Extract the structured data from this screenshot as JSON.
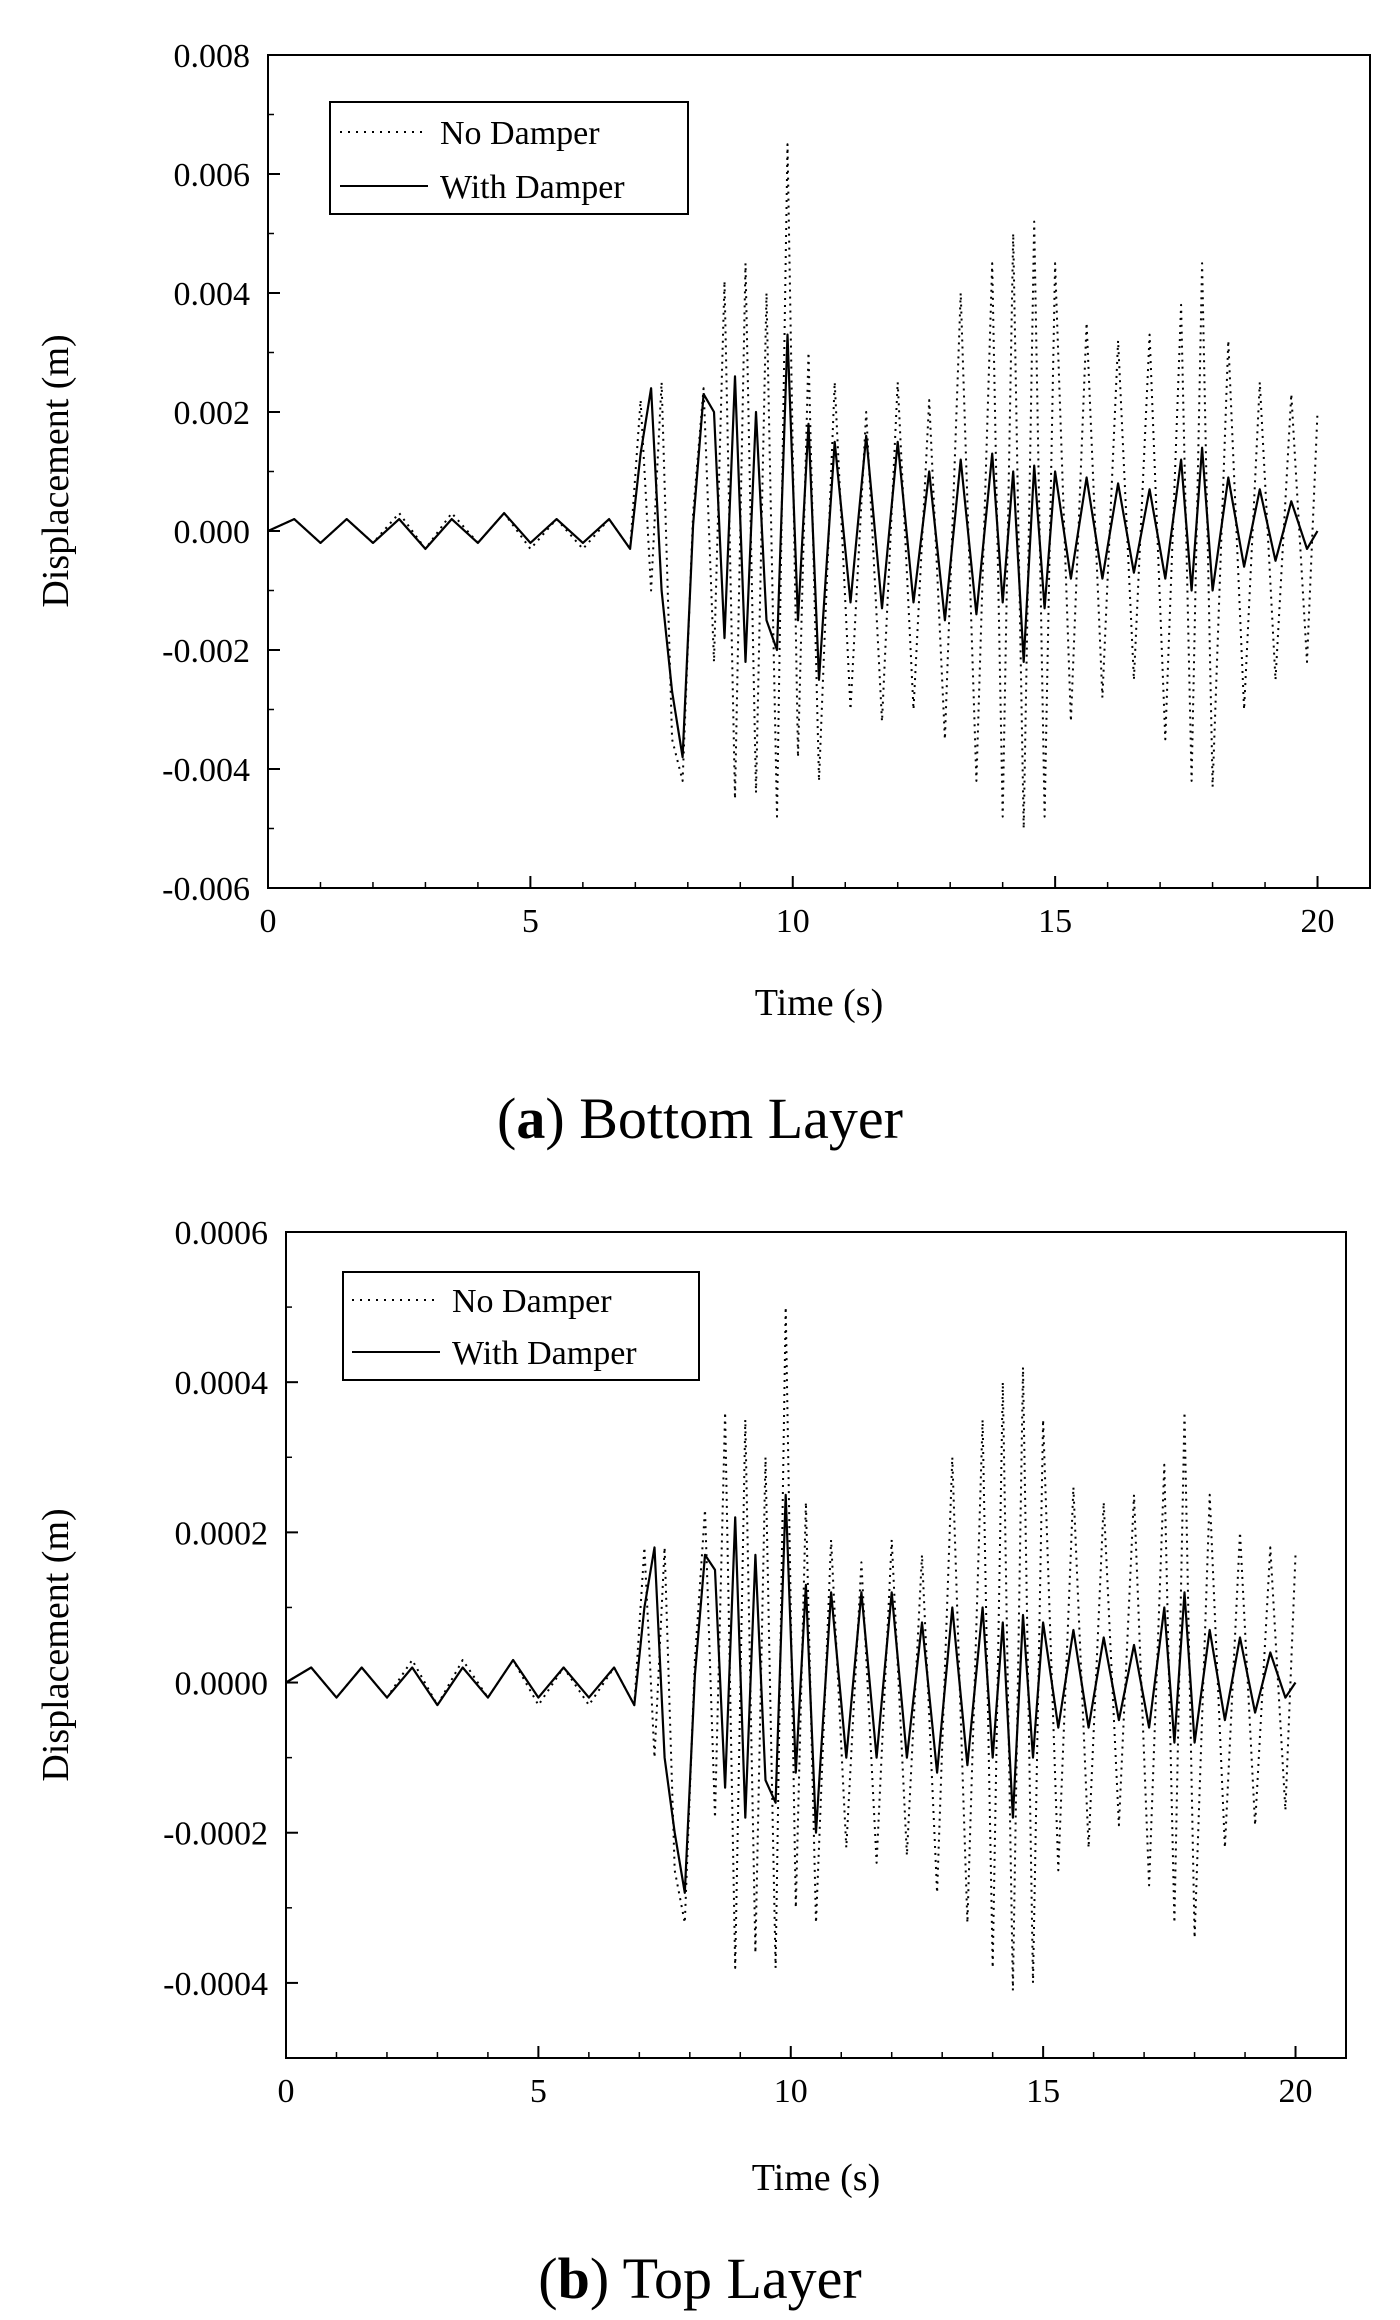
{
  "chart_data": [
    {
      "type": "line",
      "caption_letter": "a",
      "caption_text": "Bottom Layer",
      "xlabel": "Time (s)",
      "ylabel": "Displacement (m)",
      "xlim": [
        0,
        21
      ],
      "ylim": [
        -0.006,
        0.008
      ],
      "xticks": [
        0,
        5,
        10,
        15,
        20
      ],
      "xtick_labels": [
        "0",
        "5",
        "10",
        "15",
        "20"
      ],
      "yticks": [
        -0.006,
        -0.004,
        -0.002,
        0.0,
        0.002,
        0.004,
        0.006,
        0.008
      ],
      "ytick_labels": [
        "-0.006",
        "-0.004",
        "-0.002",
        "0.000",
        "0.002",
        "0.004",
        "0.006",
        "0.008"
      ],
      "legend_position": "top-left",
      "legend": [
        "No Damper",
        "With Damper"
      ],
      "series": [
        {
          "name": "No Damper",
          "style": "dotted",
          "x": [
            0,
            0.5,
            1,
            1.5,
            2,
            2.5,
            3,
            3.5,
            4,
            4.5,
            5,
            5.5,
            6,
            6.5,
            6.9,
            7.1,
            7.3,
            7.5,
            7.7,
            7.9,
            8.1,
            8.3,
            8.5,
            8.7,
            8.9,
            9.1,
            9.3,
            9.5,
            9.7,
            9.9,
            10.1,
            10.3,
            10.5,
            10.8,
            11.1,
            11.4,
            11.7,
            12.0,
            12.3,
            12.6,
            12.9,
            13.2,
            13.5,
            13.8,
            14.0,
            14.2,
            14.4,
            14.6,
            14.8,
            15.0,
            15.3,
            15.6,
            15.9,
            16.2,
            16.5,
            16.8,
            17.1,
            17.4,
            17.6,
            17.8,
            18.0,
            18.3,
            18.6,
            18.9,
            19.2,
            19.5,
            19.8,
            20.0
          ],
          "y": [
            0.0,
            0.0002,
            -0.0002,
            0.0002,
            -0.0002,
            0.0003,
            -0.0003,
            0.0003,
            -0.0002,
            0.0003,
            -0.0003,
            0.0002,
            -0.0003,
            0.0002,
            -0.0003,
            0.0022,
            -0.001,
            0.0025,
            -0.0035,
            -0.0042,
            0.0003,
            0.0024,
            -0.0022,
            0.0042,
            -0.0045,
            0.0045,
            -0.0044,
            0.004,
            -0.0048,
            0.0065,
            -0.0038,
            0.003,
            -0.0042,
            0.0025,
            -0.003,
            0.002,
            -0.0032,
            0.0025,
            -0.003,
            0.0022,
            -0.0035,
            0.004,
            -0.0042,
            0.0045,
            -0.0048,
            0.005,
            -0.005,
            0.0052,
            -0.0048,
            0.0045,
            -0.0032,
            0.0035,
            -0.0028,
            0.0032,
            -0.0025,
            0.0033,
            -0.0035,
            0.0038,
            -0.0042,
            0.0045,
            -0.0043,
            0.0032,
            -0.003,
            0.0025,
            -0.0025,
            0.0023,
            -0.0022,
            0.002
          ]
        },
        {
          "name": "With Damper",
          "style": "solid",
          "x": [
            0,
            0.5,
            1,
            1.5,
            2,
            2.5,
            3,
            3.5,
            4,
            4.5,
            5,
            5.5,
            6,
            6.5,
            6.9,
            7.1,
            7.3,
            7.5,
            7.7,
            7.9,
            8.1,
            8.3,
            8.5,
            8.7,
            8.9,
            9.1,
            9.3,
            9.5,
            9.7,
            9.9,
            10.1,
            10.3,
            10.5,
            10.8,
            11.1,
            11.4,
            11.7,
            12.0,
            12.3,
            12.6,
            12.9,
            13.2,
            13.5,
            13.8,
            14.0,
            14.2,
            14.4,
            14.6,
            14.8,
            15.0,
            15.3,
            15.6,
            15.9,
            16.2,
            16.5,
            16.8,
            17.1,
            17.4,
            17.6,
            17.8,
            18.0,
            18.3,
            18.6,
            18.9,
            19.2,
            19.5,
            19.8,
            20.0
          ],
          "y": [
            0.0,
            0.0002,
            -0.0002,
            0.0002,
            -0.0002,
            0.0002,
            -0.0003,
            0.0002,
            -0.0002,
            0.0003,
            -0.0002,
            0.0002,
            -0.0002,
            0.0002,
            -0.0003,
            0.0013,
            0.0024,
            -0.001,
            -0.0027,
            -0.0038,
            0.0001,
            0.0023,
            0.002,
            -0.0018,
            0.0026,
            -0.0022,
            0.002,
            -0.0015,
            -0.002,
            0.0033,
            -0.0015,
            0.0018,
            -0.0025,
            0.0015,
            -0.0012,
            0.0016,
            -0.0013,
            0.0015,
            -0.0012,
            0.001,
            -0.0015,
            0.0012,
            -0.0014,
            0.0013,
            -0.0012,
            0.001,
            -0.0022,
            0.0011,
            -0.0013,
            0.001,
            -0.0008,
            0.0009,
            -0.0008,
            0.0008,
            -0.0007,
            0.0007,
            -0.0008,
            0.0012,
            -0.001,
            0.0014,
            -0.001,
            0.0009,
            -0.0006,
            0.0007,
            -0.0005,
            0.0005,
            -0.0003,
            0.0
          ]
        }
      ]
    },
    {
      "type": "line",
      "caption_letter": "b",
      "caption_text": "Top Layer",
      "xlabel": "Time (s)",
      "ylabel": "Displacement (m)",
      "xlim": [
        0,
        21
      ],
      "ylim": [
        -0.0005,
        0.0006
      ],
      "xticks": [
        0,
        5,
        10,
        15,
        20
      ],
      "xtick_labels": [
        "0",
        "5",
        "10",
        "15",
        "20"
      ],
      "yticks": [
        -0.0004,
        -0.0002,
        0.0,
        0.0002,
        0.0004,
        0.0006
      ],
      "ytick_labels": [
        "-0.0004",
        "-0.0002",
        "0.0000",
        "0.0002",
        "0.0004",
        "0.0006"
      ],
      "legend_position": "top-left",
      "legend": [
        "No Damper",
        "With Damper"
      ],
      "series": [
        {
          "name": "No Damper",
          "style": "dotted",
          "x": [
            0,
            0.5,
            1,
            1.5,
            2,
            2.5,
            3,
            3.5,
            4,
            4.5,
            5,
            5.5,
            6,
            6.5,
            6.9,
            7.1,
            7.3,
            7.5,
            7.7,
            7.9,
            8.1,
            8.3,
            8.5,
            8.7,
            8.9,
            9.1,
            9.3,
            9.5,
            9.7,
            9.9,
            10.1,
            10.3,
            10.5,
            10.8,
            11.1,
            11.4,
            11.7,
            12.0,
            12.3,
            12.6,
            12.9,
            13.2,
            13.5,
            13.8,
            14.0,
            14.2,
            14.4,
            14.6,
            14.8,
            15.0,
            15.3,
            15.6,
            15.9,
            16.2,
            16.5,
            16.8,
            17.1,
            17.4,
            17.6,
            17.8,
            18.0,
            18.3,
            18.6,
            18.9,
            19.2,
            19.5,
            19.8,
            20.0
          ],
          "y": [
            0.0,
            2e-05,
            -2e-05,
            2e-05,
            -2e-05,
            3e-05,
            -3e-05,
            3e-05,
            -2e-05,
            3e-05,
            -3e-05,
            2e-05,
            -3e-05,
            2e-05,
            -3e-05,
            0.00018,
            -0.0001,
            0.00018,
            -0.00025,
            -0.00032,
            3e-05,
            0.00023,
            -0.00018,
            0.00036,
            -0.00038,
            0.00035,
            -0.00036,
            0.0003,
            -0.00038,
            0.0005,
            -0.0003,
            0.00024,
            -0.00032,
            0.00019,
            -0.00022,
            0.00016,
            -0.00024,
            0.00019,
            -0.00023,
            0.00017,
            -0.00028,
            0.0003,
            -0.00032,
            0.00035,
            -0.00038,
            0.0004,
            -0.00041,
            0.00042,
            -0.0004,
            0.00035,
            -0.00025,
            0.00026,
            -0.00022,
            0.00024,
            -0.00019,
            0.00025,
            -0.00027,
            0.00029,
            -0.00032,
            0.00036,
            -0.00034,
            0.00025,
            -0.00022,
            0.0002,
            -0.00019,
            0.00018,
            -0.00017,
            0.00017
          ]
        },
        {
          "name": "With Damper",
          "style": "solid",
          "x": [
            0,
            0.5,
            1,
            1.5,
            2,
            2.5,
            3,
            3.5,
            4,
            4.5,
            5,
            5.5,
            6,
            6.5,
            6.9,
            7.1,
            7.3,
            7.5,
            7.7,
            7.9,
            8.1,
            8.3,
            8.5,
            8.7,
            8.9,
            9.1,
            9.3,
            9.5,
            9.7,
            9.9,
            10.1,
            10.3,
            10.5,
            10.8,
            11.1,
            11.4,
            11.7,
            12.0,
            12.3,
            12.6,
            12.9,
            13.2,
            13.5,
            13.8,
            14.0,
            14.2,
            14.4,
            14.6,
            14.8,
            15.0,
            15.3,
            15.6,
            15.9,
            16.2,
            16.5,
            16.8,
            17.1,
            17.4,
            17.6,
            17.8,
            18.0,
            18.3,
            18.6,
            18.9,
            19.2,
            19.5,
            19.8,
            20.0
          ],
          "y": [
            0.0,
            2e-05,
            -2e-05,
            2e-05,
            -2e-05,
            2e-05,
            -3e-05,
            2e-05,
            -2e-05,
            3e-05,
            -2e-05,
            2e-05,
            -2e-05,
            2e-05,
            -3e-05,
            0.0001,
            0.00018,
            -0.0001,
            -0.0002,
            -0.00028,
            1e-05,
            0.00017,
            0.00015,
            -0.00014,
            0.00022,
            -0.00018,
            0.00017,
            -0.00013,
            -0.00016,
            0.00025,
            -0.00012,
            0.00013,
            -0.0002,
            0.00012,
            -0.0001,
            0.00012,
            -0.0001,
            0.00012,
            -0.0001,
            8e-05,
            -0.00012,
            0.0001,
            -0.00011,
            0.0001,
            -0.0001,
            8e-05,
            -0.00018,
            9e-05,
            -0.0001,
            8e-05,
            -6e-05,
            7e-05,
            -6e-05,
            6e-05,
            -5e-05,
            5e-05,
            -6e-05,
            0.0001,
            -8e-05,
            0.00012,
            -8e-05,
            7e-05,
            -5e-05,
            6e-05,
            -4e-05,
            4e-05,
            -2e-05,
            0.0
          ]
        }
      ]
    }
  ]
}
